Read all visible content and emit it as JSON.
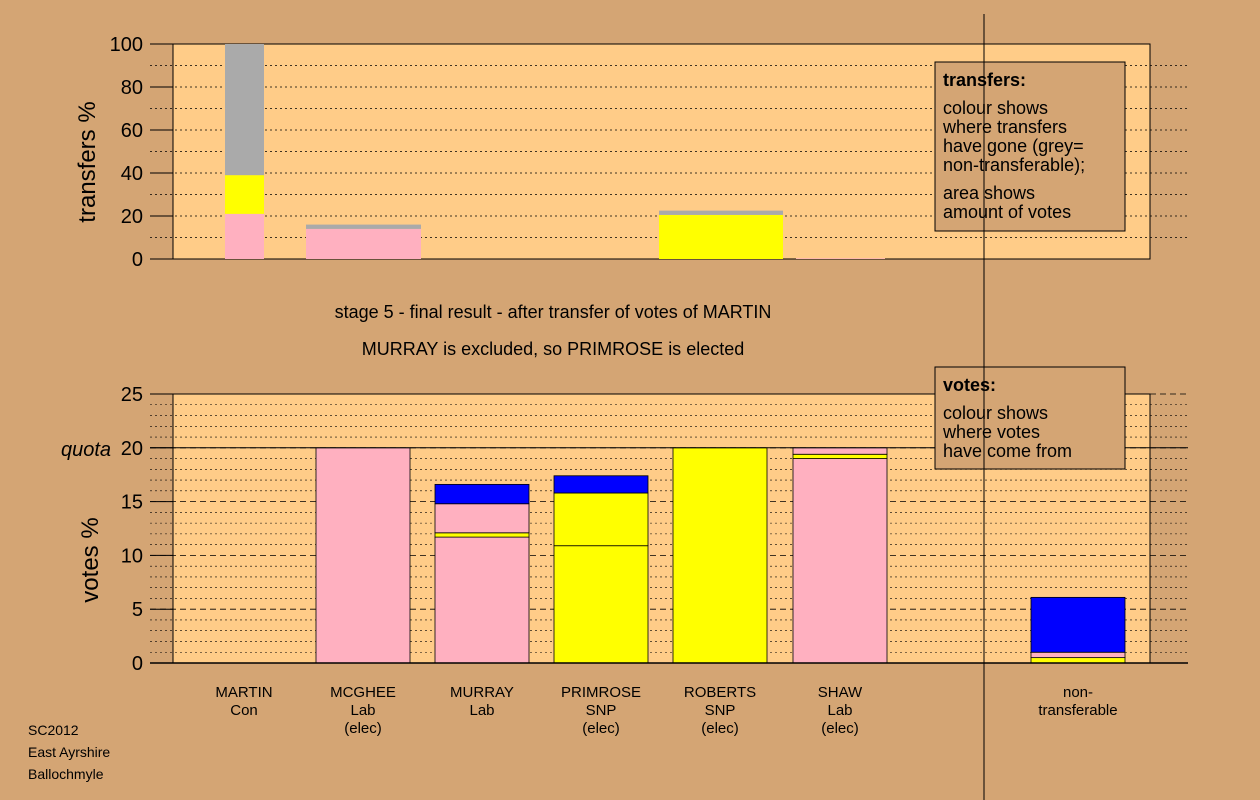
{
  "chart_data": [
    {
      "type": "bar",
      "stacked": true,
      "ylabel": "transfers %",
      "ylim": [
        0,
        100
      ],
      "yticks": [
        0,
        20,
        40,
        60,
        80,
        100
      ],
      "grid": true,
      "legend_box": {
        "title": "transfers:",
        "lines_a": [
          "colour shows",
          "where transfers",
          "have gone (grey=",
          "non-transferable);"
        ],
        "lines_b": [
          "area shows",
          "amount of votes"
        ]
      },
      "series_colors": {
        "pink": "#ffb0c0",
        "yellow": "#ffff00",
        "grey": "#aaaaaa"
      },
      "bars": [
        {
          "x_from": "MARTIN",
          "segments": [
            {
              "color": "pink",
              "value": 21
            },
            {
              "color": "yellow",
              "value": 18
            },
            {
              "color": "grey",
              "value": 61
            }
          ]
        },
        {
          "x_from": "MCGHEE",
          "segments": [
            {
              "color": "pink",
              "value": 14
            },
            {
              "color": "grey",
              "value": 2
            }
          ]
        },
        {
          "x_from": "MURRAY",
          "segments": []
        },
        {
          "x_from": "PRIMROSE",
          "segments": []
        },
        {
          "x_from": "ROBERTS",
          "segments": [
            {
              "color": "yellow",
              "value": 20.5
            },
            {
              "color": "grey",
              "value": 2
            }
          ]
        },
        {
          "x_from": "SHAW",
          "segments": [
            {
              "color": "pink",
              "value": 0.3
            }
          ]
        }
      ]
    },
    {
      "type": "bar",
      "stacked": true,
      "ylabel": "votes %",
      "ylim": [
        0,
        25
      ],
      "yticks": [
        0,
        5,
        10,
        15,
        20,
        25
      ],
      "quota_label": "quota",
      "quota": 20,
      "grid": true,
      "legend_box": {
        "title": "votes:",
        "lines": [
          "colour shows",
          "where votes",
          "have come from"
        ]
      },
      "series_colors": {
        "pink": "#ffb0c0",
        "yellow": "#ffff00",
        "blue": "#0000ff"
      },
      "candidates": [
        {
          "name": "MARTIN",
          "party": "Con",
          "status": "",
          "segments": []
        },
        {
          "name": "MCGHEE",
          "party": "Lab",
          "status": "(elec)",
          "segments": [
            {
              "color": "pink",
              "value": 20
            }
          ]
        },
        {
          "name": "MURRAY",
          "party": "Lab",
          "status": "",
          "segments": [
            {
              "color": "pink",
              "value": 11.7
            },
            {
              "color": "yellow",
              "value": 0.4
            },
            {
              "color": "pink",
              "value": 2.7
            },
            {
              "color": "blue",
              "value": 1.8
            }
          ]
        },
        {
          "name": "PRIMROSE",
          "party": "SNP",
          "status": "(elec)",
          "segments": [
            {
              "color": "yellow",
              "value": 10.9
            },
            {
              "color": "yellow",
              "value": 4.9
            },
            {
              "color": "blue",
              "value": 1.6
            }
          ]
        },
        {
          "name": "ROBERTS",
          "party": "SNP",
          "status": "(elec)",
          "segments": [
            {
              "color": "yellow",
              "value": 20
            }
          ]
        },
        {
          "name": "SHAW",
          "party": "Lab",
          "status": "(elec)",
          "segments": [
            {
              "color": "pink",
              "value": 19
            },
            {
              "color": "yellow",
              "value": 0.4
            },
            {
              "color": "pink",
              "value": 0.6
            }
          ]
        },
        {
          "name": "non-",
          "party": "transferable",
          "status": "",
          "segments": [
            {
              "color": "yellow",
              "value": 0.5
            },
            {
              "color": "pink",
              "value": 0.5
            },
            {
              "color": "blue",
              "value": 5.1
            }
          ]
        }
      ]
    }
  ],
  "caption": {
    "line1": "stage 5 - final result - after transfer of votes of MARTIN",
    "line2": "MURRAY is excluded, so PRIMROSE is elected"
  },
  "footer": {
    "line1": "SC2012",
    "line2": "East Ayrshire",
    "line3": "Ballochmyle"
  }
}
